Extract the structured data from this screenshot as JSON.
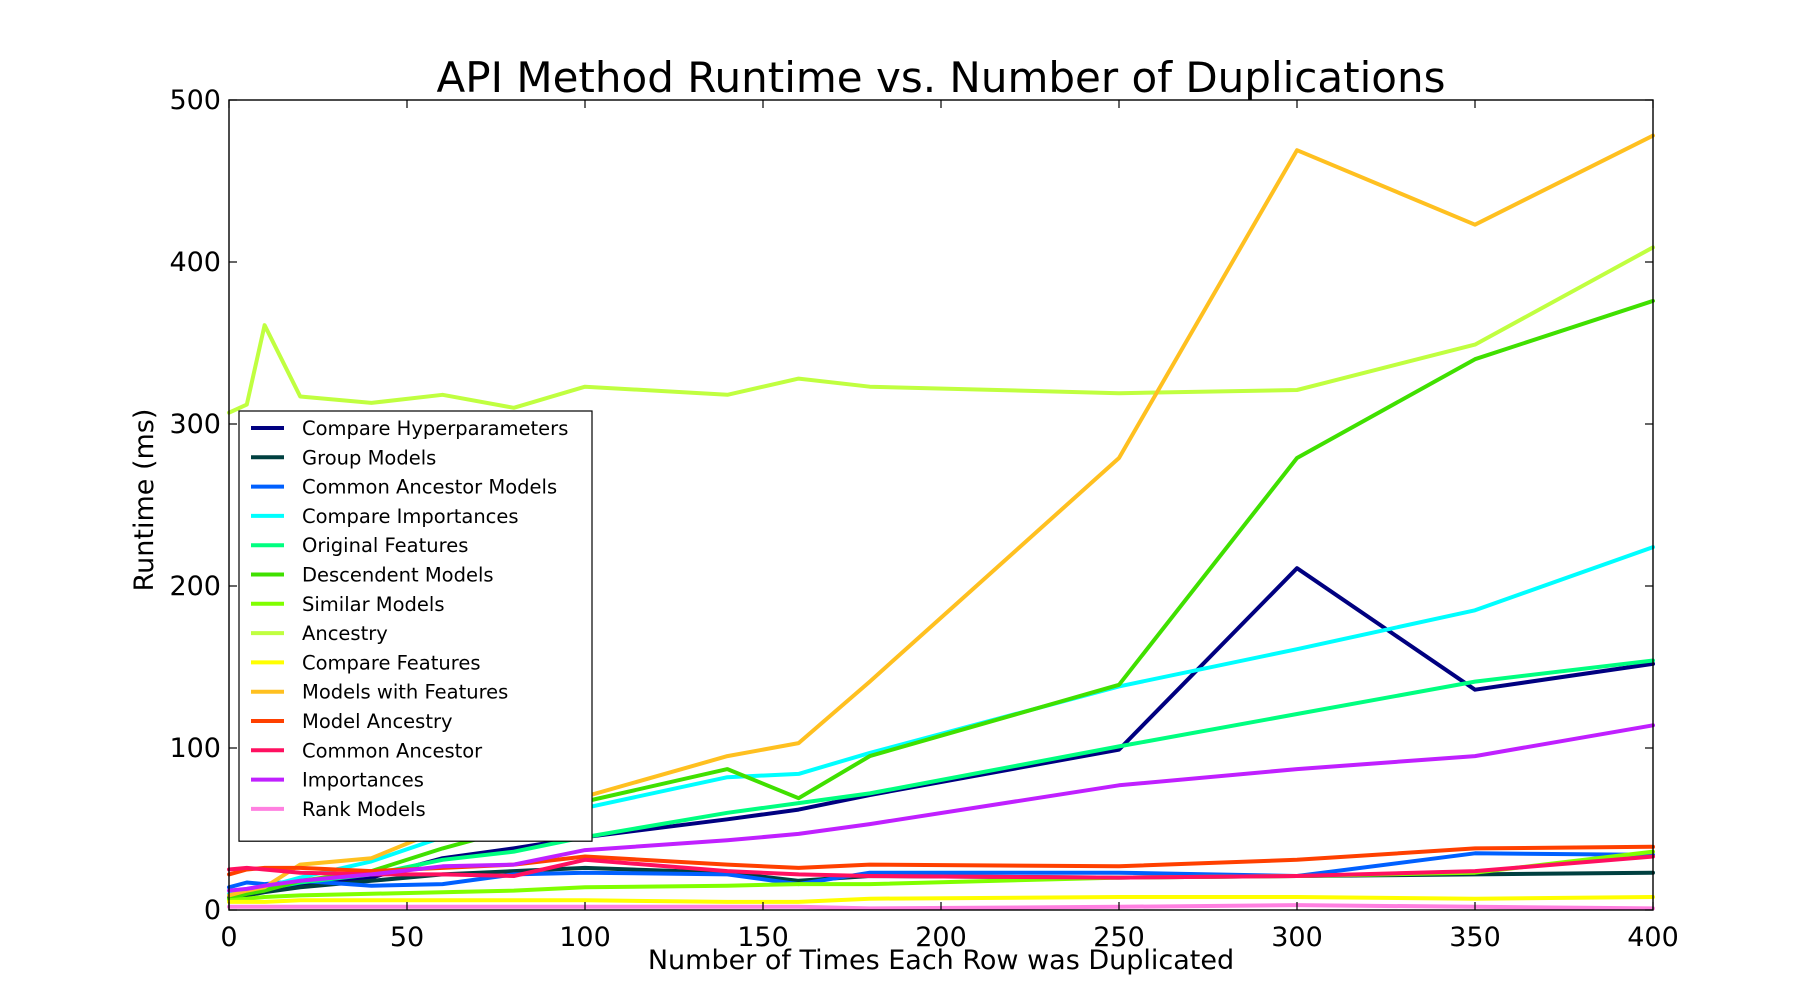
{
  "chart_data": {
    "type": "line",
    "title": "API Method Runtime vs. Number of Duplications",
    "xlabel": "Number of Times Each Row was Duplicated",
    "ylabel": "Runtime (ms)",
    "xlim": [
      0,
      400
    ],
    "ylim": [
      0,
      500
    ],
    "xticks": [
      "0",
      "50",
      "100",
      "150",
      "200",
      "250",
      "300",
      "350",
      "400"
    ],
    "yticks": [
      "0",
      "100",
      "200",
      "300",
      "400",
      "500"
    ],
    "grid": false,
    "legend_position": "center-left",
    "series": [
      {
        "name": "Compare Hyperparameters",
        "color": "#000080",
        "x": [
          0,
          5,
          10,
          20,
          40,
          60,
          80,
          100,
          140,
          160,
          180,
          250,
          300,
          350,
          400
        ],
        "y": [
          8,
          10,
          12,
          16,
          20,
          32,
          38,
          45,
          56,
          62,
          71,
          99,
          211,
          136,
          152
        ]
      },
      {
        "name": "Group Models",
        "color": "#004040",
        "x": [
          0,
          5,
          10,
          20,
          40,
          60,
          80,
          100,
          140,
          160,
          180,
          250,
          300,
          350,
          400
        ],
        "y": [
          7,
          9,
          11,
          14,
          18,
          22,
          24,
          26,
          23,
          18,
          21,
          20,
          21,
          22,
          23
        ]
      },
      {
        "name": "Common Ancestor Models",
        "color": "#0060ff",
        "x": [
          0,
          5,
          10,
          20,
          40,
          60,
          80,
          100,
          140,
          160,
          180,
          250,
          300,
          350,
          400
        ],
        "y": [
          14,
          17,
          16,
          18,
          15,
          16,
          22,
          23,
          22,
          16,
          23,
          23,
          21,
          35,
          34
        ]
      },
      {
        "name": "Compare Importances",
        "color": "#00ffff",
        "x": [
          0,
          5,
          10,
          20,
          40,
          60,
          80,
          100,
          140,
          160,
          180,
          250,
          300,
          350,
          400
        ],
        "y": [
          10,
          12,
          14,
          20,
          30,
          45,
          48,
          63,
          82,
          84,
          97,
          138,
          161,
          185,
          224
        ]
      },
      {
        "name": "Original Features",
        "color": "#00ff80",
        "x": [
          0,
          5,
          10,
          20,
          40,
          60,
          80,
          100,
          140,
          160,
          180,
          250,
          300,
          350,
          400
        ],
        "y": [
          9,
          11,
          13,
          17,
          22,
          31,
          36,
          45,
          60,
          66,
          72,
          101,
          121,
          141,
          154
        ]
      },
      {
        "name": "Descendent Models",
        "color": "#40e000",
        "x": [
          0,
          5,
          10,
          20,
          40,
          60,
          80,
          100,
          140,
          160,
          180,
          250,
          300,
          350,
          400
        ],
        "y": [
          7,
          10,
          12,
          18,
          24,
          38,
          50,
          67,
          87,
          69,
          95,
          139,
          279,
          340,
          376
        ]
      },
      {
        "name": "Similar Models",
        "color": "#80ff00",
        "x": [
          0,
          5,
          10,
          20,
          40,
          60,
          80,
          100,
          140,
          160,
          180,
          250,
          300,
          350,
          400
        ],
        "y": [
          6,
          7,
          8,
          9,
          10,
          11,
          12,
          14,
          15,
          16,
          16,
          20,
          21,
          23,
          36
        ]
      },
      {
        "name": "Ancestry",
        "color": "#c0ff40",
        "x": [
          0,
          5,
          10,
          20,
          40,
          60,
          80,
          100,
          140,
          160,
          180,
          250,
          300,
          350,
          400
        ],
        "y": [
          307,
          312,
          361,
          317,
          313,
          318,
          310,
          323,
          318,
          328,
          323,
          319,
          321,
          349,
          409
        ]
      },
      {
        "name": "Compare Features",
        "color": "#ffff00",
        "x": [
          0,
          5,
          10,
          20,
          40,
          60,
          80,
          100,
          140,
          160,
          180,
          250,
          300,
          350,
          400
        ],
        "y": [
          5,
          5,
          5,
          6,
          6,
          6,
          6,
          6,
          5,
          5,
          7,
          8,
          8,
          7,
          8
        ]
      },
      {
        "name": "Models with Features",
        "color": "#ffc020",
        "x": [
          0,
          5,
          10,
          20,
          40,
          60,
          80,
          100,
          140,
          160,
          180,
          250,
          300,
          350,
          400
        ],
        "y": [
          9,
          12,
          14,
          28,
          32,
          50,
          57,
          70,
          95,
          103,
          141,
          279,
          469,
          423,
          478
        ]
      },
      {
        "name": "Model Ancestry",
        "color": "#ff4000",
        "x": [
          0,
          5,
          10,
          20,
          40,
          60,
          80,
          100,
          140,
          160,
          180,
          250,
          300,
          350,
          400
        ],
        "y": [
          22,
          25,
          26,
          26,
          24,
          26,
          28,
          33,
          28,
          26,
          28,
          27,
          31,
          38,
          39
        ]
      },
      {
        "name": "Common Ancestor",
        "color": "#ff1060",
        "x": [
          0,
          5,
          10,
          20,
          40,
          60,
          80,
          100,
          140,
          160,
          180,
          250,
          300,
          350,
          400
        ],
        "y": [
          25,
          26,
          25,
          23,
          22,
          22,
          21,
          31,
          24,
          22,
          21,
          20,
          21,
          24,
          33
        ]
      },
      {
        "name": "Importances",
        "color": "#c020ff",
        "x": [
          0,
          5,
          10,
          20,
          40,
          60,
          80,
          100,
          140,
          160,
          180,
          250,
          300,
          350,
          400
        ],
        "y": [
          12,
          13,
          15,
          18,
          22,
          27,
          28,
          37,
          43,
          47,
          53,
          77,
          87,
          95,
          114
        ]
      },
      {
        "name": "Rank Models",
        "color": "#ff80e0",
        "x": [
          0,
          5,
          10,
          20,
          40,
          60,
          80,
          100,
          140,
          160,
          180,
          250,
          300,
          350,
          400
        ],
        "y": [
          2,
          2,
          2,
          2,
          2,
          2,
          2,
          2,
          2,
          2,
          1,
          2,
          3,
          2,
          1
        ]
      }
    ]
  }
}
